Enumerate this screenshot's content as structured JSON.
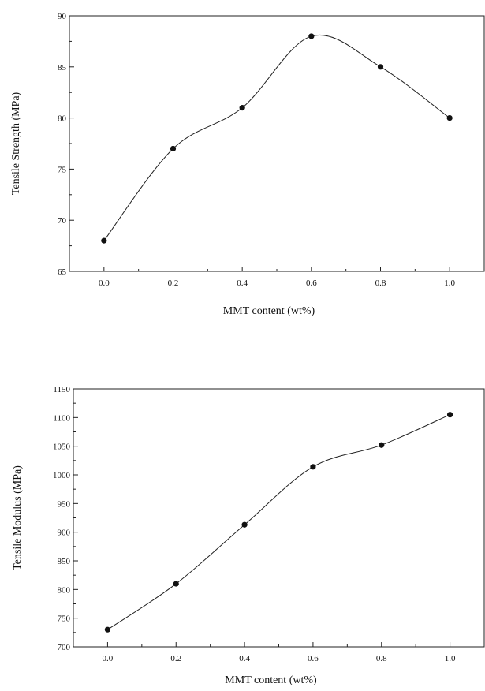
{
  "chart_data": [
    {
      "type": "line",
      "title": "",
      "xlabel": "MMT content (wt%)",
      "ylabel": "Tensile Strength (MPa)",
      "x": [
        0.0,
        0.2,
        0.4,
        0.6,
        0.8,
        1.0
      ],
      "series": [
        {
          "values": [
            68,
            77,
            81,
            88,
            85,
            80
          ]
        }
      ],
      "xlim": [
        -0.1,
        1.1
      ],
      "ylim": [
        65,
        90
      ],
      "xticks": [
        "0.0",
        "0.2",
        "0.4",
        "0.6",
        "0.8",
        "1.0"
      ],
      "yticks": [
        "65",
        "70",
        "75",
        "80",
        "85",
        "90"
      ],
      "grid": false,
      "marker": "filled-circle",
      "line": "smooth"
    },
    {
      "type": "line",
      "title": "",
      "xlabel": "MMT content (wt%)",
      "ylabel": "Tensile Modulus (MPa)",
      "x": [
        0.0,
        0.2,
        0.4,
        0.6,
        0.8,
        1.0
      ],
      "series": [
        {
          "values": [
            730,
            810,
            913,
            1014,
            1052,
            1105
          ]
        }
      ],
      "xlim": [
        -0.1,
        1.1
      ],
      "ylim": [
        700,
        1150
      ],
      "xticks": [
        "0.0",
        "0.2",
        "0.4",
        "0.6",
        "0.8",
        "1.0"
      ],
      "yticks": [
        "700",
        "750",
        "800",
        "850",
        "900",
        "950",
        "1000",
        "1050",
        "1100",
        "1150"
      ],
      "grid": false,
      "marker": "filled-circle",
      "line": "smooth"
    }
  ]
}
